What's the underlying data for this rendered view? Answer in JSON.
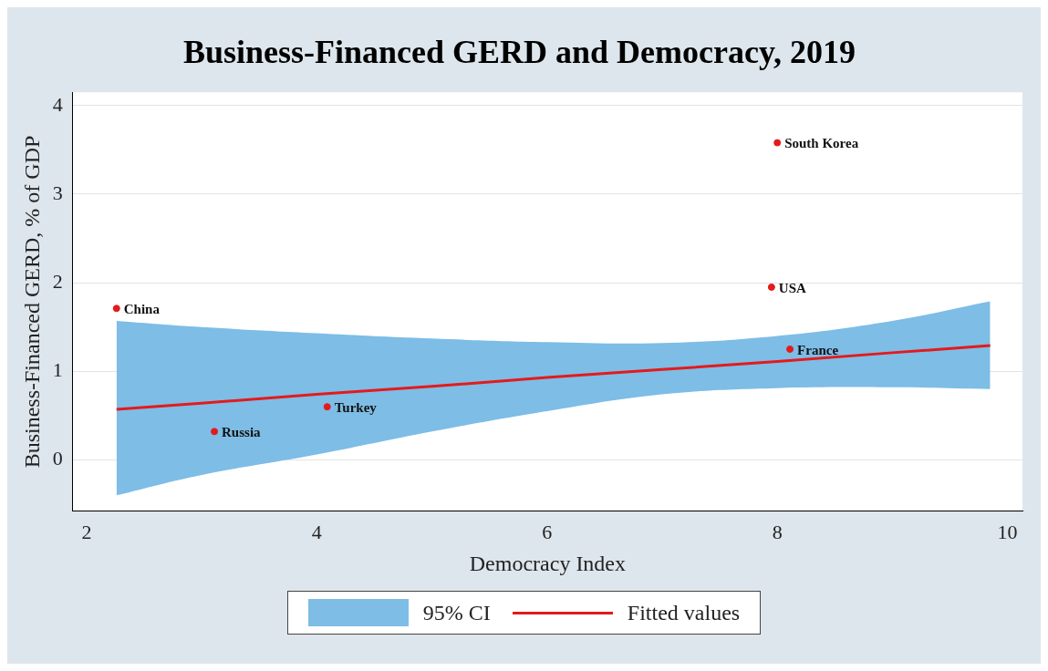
{
  "chart_data": {
    "type": "scatter",
    "title": "Business-Financed GERD and Democracy, 2019",
    "xlabel": "Democracy Index",
    "ylabel": "Business-Financed GERD, % of GDP",
    "xlim": [
      1.88,
      10.13
    ],
    "xticks": [
      2,
      4,
      6,
      8,
      10
    ],
    "ylim": [
      -0.58,
      4.15
    ],
    "yticks": [
      0,
      1,
      2,
      3,
      4
    ],
    "grid": "y",
    "legend": "bottom",
    "series": [
      {
        "name": "Fitted values",
        "type": "line",
        "color": "#e41a1c",
        "x": [
          2.26,
          3,
          4,
          5,
          6,
          7,
          8,
          9,
          9.85
        ],
        "values": [
          0.57,
          0.64,
          0.74,
          0.83,
          0.93,
          1.02,
          1.11,
          1.21,
          1.29
        ],
        "lower": [
          -0.4,
          -0.17,
          0.06,
          0.32,
          0.55,
          0.74,
          0.81,
          0.82,
          0.8
        ],
        "upper": [
          1.57,
          1.5,
          1.43,
          1.37,
          1.33,
          1.32,
          1.4,
          1.57,
          1.79
        ]
      },
      {
        "color": "#e41a1c",
        "marker": "circle",
        "x": [
          2.26,
          3.11,
          4.09,
          8.11,
          7.95,
          8.0
        ],
        "values": [
          1.71,
          0.32,
          0.6,
          1.25,
          1.95,
          3.58
        ]
      }
    ],
    "annotations": [
      "95% CI",
      {
        "text": "China",
        "x": 2.26,
        "y": 1.71
      },
      {
        "text": "Russia",
        "x": 3.11,
        "y": 0.32
      },
      {
        "text": "Turkey",
        "x": 4.09,
        "y": 0.6
      },
      {
        "text": "France",
        "x": 8.11,
        "y": 1.25
      },
      {
        "text": "USA",
        "x": 7.95,
        "y": 1.95
      },
      {
        "text": "South Korea",
        "x": 8.0,
        "y": 3.58
      }
    ]
  }
}
